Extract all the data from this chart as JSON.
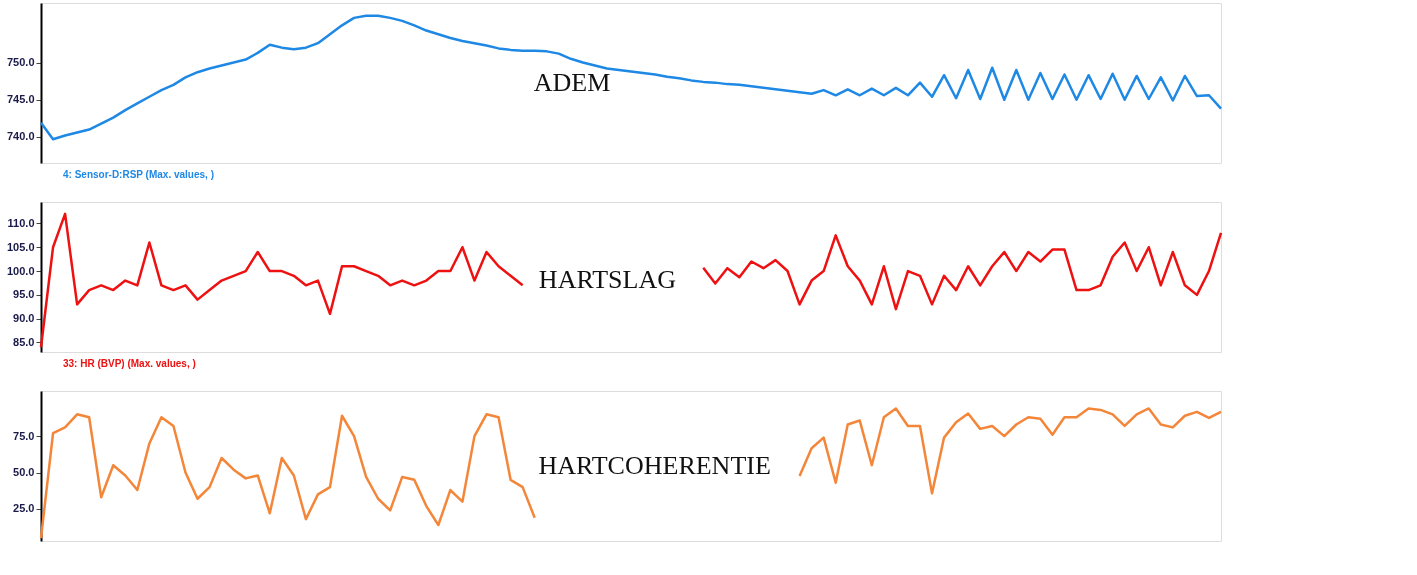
{
  "chart_data": [
    {
      "type": "line",
      "title": "ADEM",
      "annotations": [
        "4: Sensor-D:RSP (Max. values, )"
      ],
      "tick_labels": "y",
      "grid": false,
      "marker": "none",
      "line_style": "solid",
      "categories": [
        null,
        null,
        null,
        null,
        null,
        null,
        null,
        null,
        null,
        null,
        null,
        null,
        null,
        null,
        null,
        null,
        null,
        null,
        null,
        null,
        null,
        null,
        null,
        null,
        null,
        null,
        null,
        null,
        null,
        null,
        null,
        null,
        null,
        null,
        null,
        null,
        null,
        null,
        null,
        null,
        null,
        null,
        null,
        null,
        null,
        null,
        null,
        null,
        null,
        null,
        null,
        null,
        null,
        null,
        null,
        null,
        null,
        null,
        null,
        null,
        null,
        null,
        null,
        null,
        null,
        null,
        null,
        null,
        null,
        null,
        null,
        null,
        null,
        null,
        null,
        null,
        null,
        null,
        null,
        null,
        null,
        null,
        null,
        null,
        null,
        null,
        null,
        null,
        null,
        null,
        null,
        null,
        null,
        null,
        null,
        null,
        null,
        null,
        null
      ],
      "ylim": [
        736.5,
        758
      ],
      "yticks": [
        {
          "value": 740,
          "label": "740.0"
        },
        {
          "value": 745,
          "label": "745.0"
        },
        {
          "value": 750,
          "label": "750.0"
        }
      ],
      "series": [
        {
          "color": "#1e88e5",
          "values": [
            741.9,
            739.7,
            740.2,
            740.6,
            741.0,
            741.8,
            742.6,
            743.6,
            744.5,
            745.4,
            746.3,
            747.0,
            748.0,
            748.7,
            749.2,
            749.6,
            750.0,
            750.4,
            751.3,
            752.4,
            752.0,
            751.8,
            752.0,
            752.6,
            753.8,
            755.0,
            756.0,
            756.3,
            756.3,
            756.0,
            755.6,
            755.0,
            754.3,
            753.8,
            753.3,
            752.9,
            752.6,
            752.3,
            751.9,
            751.7,
            751.6,
            751.6,
            751.5,
            751.2,
            750.5,
            750.0,
            749.6,
            749.2,
            749.0,
            748.8,
            748.6,
            748.4,
            748.1,
            747.9,
            747.6,
            747.4,
            747.3,
            747.1,
            747.0,
            746.8,
            746.6,
            746.4,
            746.2,
            746.0,
            745.8,
            746.3,
            745.6,
            746.4,
            745.6,
            746.5,
            745.6,
            746.6,
            745.6,
            747.3,
            745.4,
            748.3,
            745.2,
            749.0,
            745.1,
            749.3,
            745.0,
            749.0,
            745.0,
            748.6,
            745.1,
            748.4,
            745.0,
            748.3,
            745.1,
            748.5,
            745.0,
            748.2,
            745.1,
            748.0,
            744.9,
            748.2,
            745.5,
            745.6,
            743.8
          ]
        }
      ]
    },
    {
      "type": "line",
      "title": "HARTSLAG",
      "annotations": [
        "33: HR (BVP) (Max. values, )"
      ],
      "tick_labels": "y",
      "grid": false,
      "marker": "none",
      "line_style": "solid",
      "categories": [
        null,
        null,
        null,
        null,
        null,
        null,
        null,
        null,
        null,
        null,
        null,
        null,
        null,
        null,
        null,
        null,
        null,
        null,
        null,
        null,
        null,
        null,
        null,
        null,
        null,
        null,
        null,
        null,
        null,
        null,
        null,
        null,
        null,
        null,
        null,
        null,
        null,
        null,
        null,
        null,
        null,
        null,
        null,
        null,
        null,
        null,
        null,
        null,
        null,
        null,
        null,
        null,
        null,
        null,
        null,
        null,
        null,
        null,
        null,
        null,
        null,
        null,
        null,
        null,
        null,
        null,
        null,
        null,
        null,
        null,
        null,
        null,
        null,
        null,
        null,
        null,
        null,
        null,
        null,
        null,
        null,
        null,
        null,
        null,
        null,
        null,
        null,
        null,
        null,
        null,
        null,
        null,
        null,
        null,
        null,
        null,
        null,
        null,
        null
      ],
      "ylim": [
        83,
        114.5
      ],
      "yticks": [
        {
          "value": 85,
          "label": "85.0"
        },
        {
          "value": 90,
          "label": "90.0"
        },
        {
          "value": 95,
          "label": "95.0"
        },
        {
          "value": 100,
          "label": "100.0"
        },
        {
          "value": 105,
          "label": "105.0"
        },
        {
          "value": 110,
          "label": "110.0"
        }
      ],
      "series": [
        {
          "color": "#ee1111",
          "values": [
            84,
            105,
            112,
            93,
            96,
            97,
            96,
            98,
            97,
            106,
            97,
            96,
            97,
            94,
            96,
            98,
            99,
            100,
            104,
            100,
            100,
            99,
            97,
            98,
            91,
            101,
            101,
            100,
            99,
            97,
            98,
            97,
            98,
            100,
            100,
            105,
            98,
            104,
            101,
            99,
            97,
            null,
            null,
            null,
            null,
            null,
            null,
            null,
            null,
            null,
            null,
            null,
            null,
            null,
            null,
            100.7,
            97.4,
            100.6,
            98.7,
            102,
            100.6,
            102.3,
            100,
            93,
            98,
            100,
            107.5,
            101,
            98,
            93,
            101,
            92,
            100,
            99,
            93,
            99,
            96,
            101,
            97,
            101,
            104,
            100,
            104,
            102,
            104.5,
            104.5,
            96,
            96,
            97,
            103,
            106,
            100,
            105,
            97,
            104,
            97,
            95,
            100,
            108
          ]
        }
      ]
    },
    {
      "type": "line",
      "title": "HARTCOHERENTIE",
      "tick_labels": "y",
      "grid": false,
      "marker": "none",
      "line_style": "solid",
      "categories": [
        null,
        null,
        null,
        null,
        null,
        null,
        null,
        null,
        null,
        null,
        null,
        null,
        null,
        null,
        null,
        null,
        null,
        null,
        null,
        null,
        null,
        null,
        null,
        null,
        null,
        null,
        null,
        null,
        null,
        null,
        null,
        null,
        null,
        null,
        null,
        null,
        null,
        null,
        null,
        null,
        null,
        null,
        null,
        null,
        null,
        null,
        null,
        null,
        null,
        null,
        null,
        null,
        null,
        null,
        null,
        null,
        null,
        null,
        null,
        null,
        null,
        null,
        null,
        null,
        null,
        null,
        null,
        null,
        null,
        null,
        null,
        null,
        null,
        null,
        null,
        null,
        null,
        null,
        null,
        null,
        null,
        null,
        null,
        null,
        null,
        null,
        null,
        null,
        null,
        null,
        null,
        null,
        null,
        null,
        null,
        null,
        null,
        null,
        null
      ],
      "ylim": [
        3,
        106
      ],
      "yticks": [
        {
          "value": 25,
          "label": "25.0"
        },
        {
          "value": 50,
          "label": "50.0"
        },
        {
          "value": 75,
          "label": "75.0"
        }
      ],
      "series": [
        {
          "color": "#f4863a",
          "values": [
            5,
            77,
            81,
            90,
            88,
            33,
            55,
            48,
            38,
            70,
            88,
            82,
            50,
            32,
            40,
            60,
            52,
            46,
            48,
            22,
            60,
            48,
            18,
            35,
            40,
            89,
            75,
            47,
            32,
            24,
            47,
            45,
            27,
            14,
            38,
            30,
            75,
            90,
            88,
            45,
            40,
            19,
            null,
            null,
            null,
            null,
            null,
            null,
            null,
            null,
            null,
            null,
            null,
            null,
            null,
            null,
            null,
            null,
            null,
            null,
            null,
            null,
            null,
            47.6,
            66.7,
            74,
            43,
            83,
            85.7,
            55,
            88,
            94,
            82,
            82,
            35.7,
            74,
            84.5,
            90.5,
            80,
            82,
            75,
            83,
            88,
            87,
            76,
            88,
            88,
            94,
            93,
            90,
            82,
            90,
            94,
            83,
            81,
            89,
            91.7,
            87.5,
            91.7
          ]
        }
      ]
    }
  ]
}
